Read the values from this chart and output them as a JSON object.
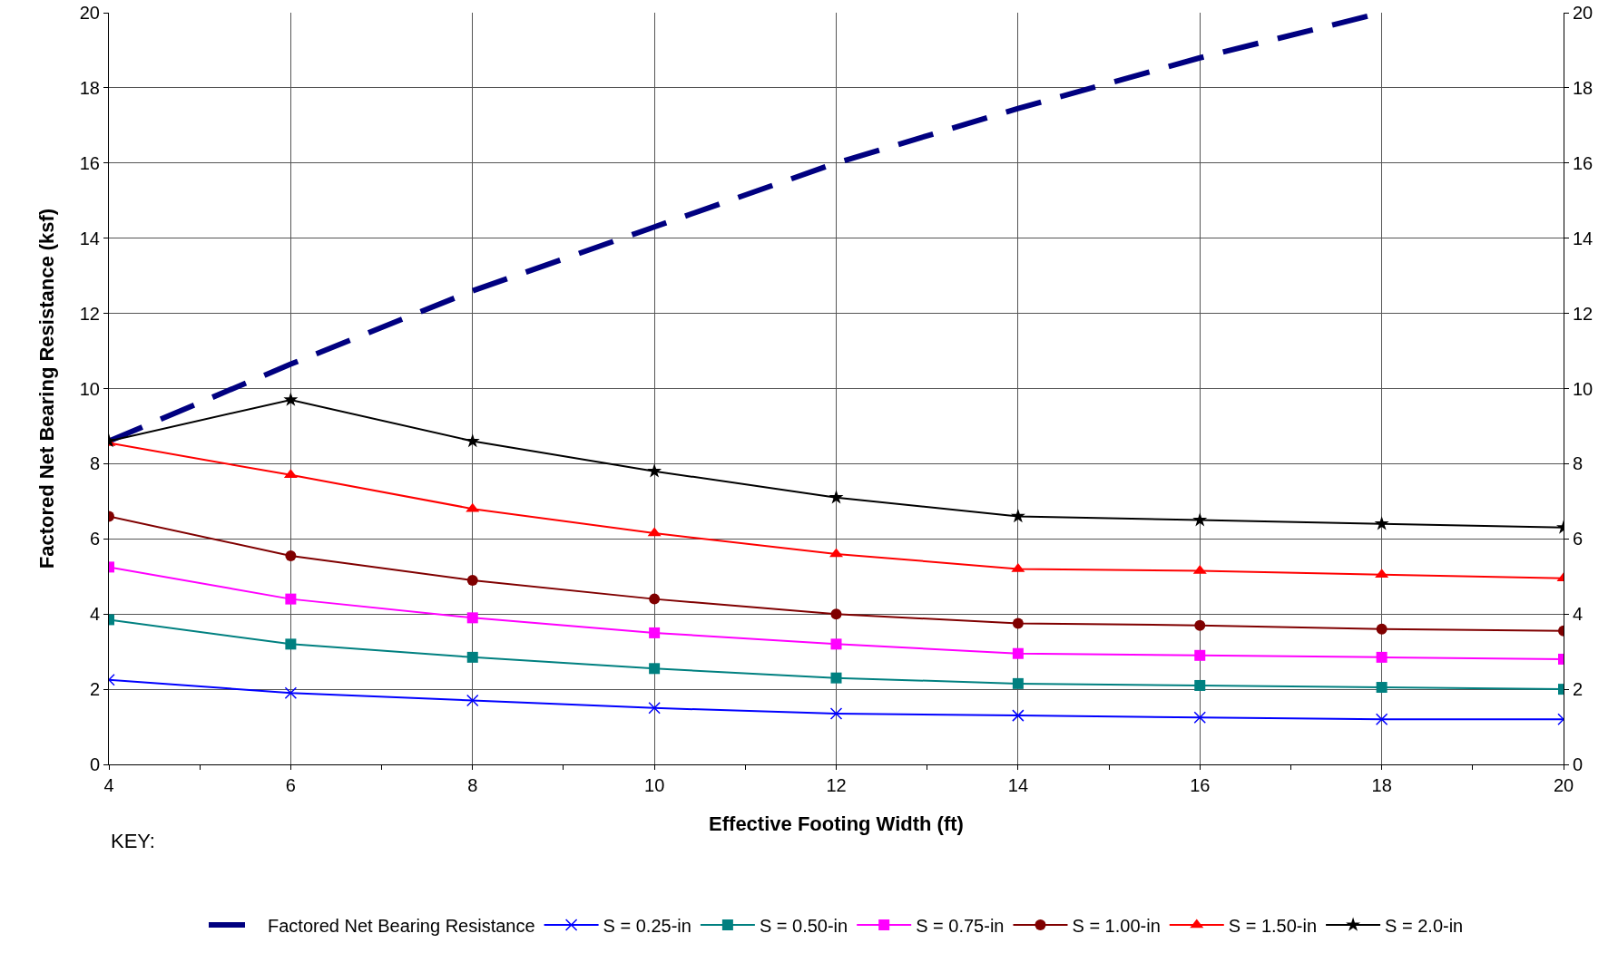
{
  "chart_data": {
    "type": "line",
    "xlabel": "Effective Footing Width (ft)",
    "ylabel": "Factored Net Bearing Resistance (ksf)",
    "annotations": [
      "KEY:"
    ],
    "x": [
      4,
      6,
      8,
      10,
      12,
      14,
      16,
      18,
      20
    ],
    "series": [
      {
        "name": "Factored Net Bearing Resistance",
        "color": "#000080",
        "line_style": "dashed",
        "marker": "none",
        "values": [
          8.6,
          10.65,
          12.6,
          14.3,
          16.0,
          17.45,
          18.8,
          20.0,
          null
        ]
      },
      {
        "name": "S = 0.25-in",
        "color": "#0000ff",
        "marker": "cross",
        "values": [
          2.25,
          1.9,
          1.7,
          1.5,
          1.35,
          1.3,
          1.25,
          1.2,
          1.2
        ]
      },
      {
        "name": "S = 0.50-in",
        "color": "#008080",
        "marker": "square",
        "values": [
          3.85,
          3.2,
          2.85,
          2.55,
          2.3,
          2.15,
          2.1,
          2.05,
          2.0
        ]
      },
      {
        "name": "S = 0.75-in",
        "color": "#ff00ff",
        "marker": "square",
        "values": [
          5.25,
          4.4,
          3.9,
          3.5,
          3.2,
          2.95,
          2.9,
          2.85,
          2.8
        ]
      },
      {
        "name": "S = 1.00-in",
        "color": "#800000",
        "marker": "circle",
        "values": [
          6.6,
          5.55,
          4.9,
          4.4,
          4.0,
          3.75,
          3.7,
          3.6,
          3.55
        ]
      },
      {
        "name": "S = 1.50-in",
        "color": "#ff0000",
        "marker": "triangle",
        "values": [
          8.55,
          7.7,
          6.8,
          6.15,
          5.6,
          5.2,
          5.15,
          5.05,
          4.95
        ]
      },
      {
        "name": "S = 2.0-in",
        "color": "#000000",
        "marker": "star",
        "values": [
          8.6,
          9.7,
          8.6,
          7.8,
          7.1,
          6.6,
          6.5,
          6.4,
          6.3
        ]
      }
    ],
    "xlim": [
      4,
      20
    ],
    "xticks": [
      4,
      6,
      8,
      10,
      12,
      14,
      16,
      18,
      20
    ],
    "ylim": [
      0,
      20
    ],
    "yticks": [
      0,
      2,
      4,
      6,
      8,
      10,
      12,
      14,
      16,
      18,
      20
    ],
    "y2lim": [
      0,
      20
    ],
    "y2ticks": [
      0,
      2,
      4,
      6,
      8,
      10,
      12,
      14,
      16,
      18,
      20
    ],
    "grid": true,
    "legend": "bottom"
  }
}
